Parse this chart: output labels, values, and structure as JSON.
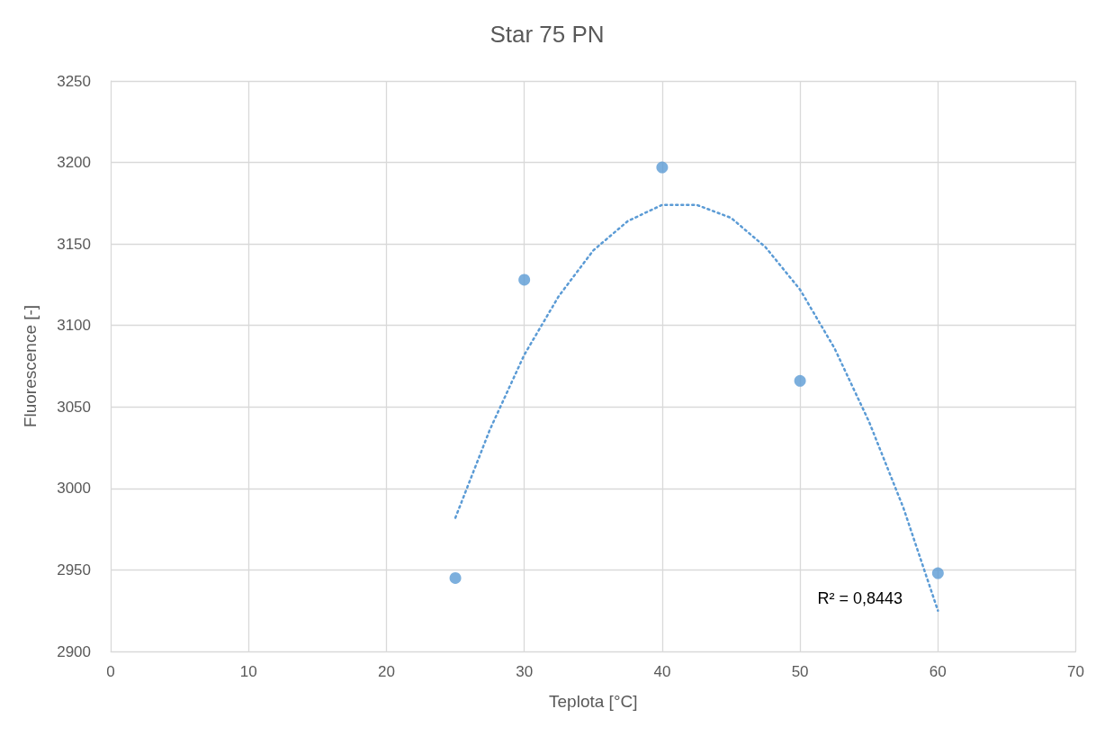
{
  "chart_data": {
    "type": "scatter",
    "title": "Star 75 PN",
    "xlabel": "Teplota [°C]",
    "ylabel": "Fluorescence [-]",
    "xlim": [
      0,
      70
    ],
    "xticks": [
      0,
      10,
      20,
      30,
      40,
      50,
      60,
      70
    ],
    "ylim": [
      2900,
      3250
    ],
    "yticks": [
      2900,
      2950,
      3000,
      3050,
      3100,
      3150,
      3200,
      3250
    ],
    "grid": true,
    "marker": "circle",
    "series": [
      {
        "color": "#5b9bd5",
        "x": [
          25,
          30,
          40,
          50,
          60
        ],
        "values": [
          2945,
          3128,
          3197,
          3066,
          2948
        ]
      },
      {
        "type": "line",
        "color": "#5b9bd5",
        "line_style": "dotted",
        "marker": "none",
        "x": [
          25,
          27.5,
          30,
          32.5,
          35,
          37.5,
          40,
          42.5,
          45,
          47.5,
          50,
          52.5,
          55,
          57.5,
          60
        ],
        "values": [
          2982,
          3036,
          3082,
          3118,
          3146,
          3164,
          3174,
          3174,
          3166,
          3148,
          3122,
          3086,
          3041,
          2988,
          2925
        ]
      }
    ],
    "annotations": [
      "R² = 0,8443"
    ]
  }
}
